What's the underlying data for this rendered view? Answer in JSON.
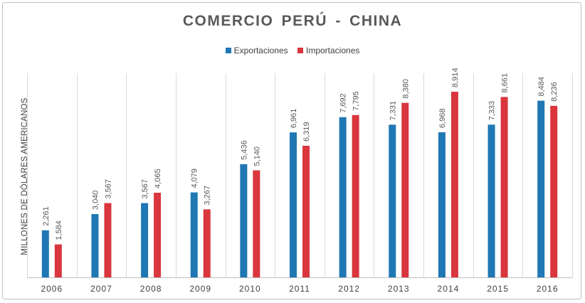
{
  "chart_data": {
    "type": "bar",
    "title": "COMERCIO  PERÚ - CHINA",
    "ylabel": "MILLONES DE DÓLARES AMERICANOS",
    "xlabel": "",
    "categories": [
      "2006",
      "2007",
      "2008",
      "2009",
      "2010",
      "2011",
      "2012",
      "2013",
      "2014",
      "2015",
      "2016"
    ],
    "ylim": [
      0,
      9800
    ],
    "grid": "vertical-category-separators",
    "legend_position": "top-center",
    "series": [
      {
        "name": "Exportaciones",
        "color": "#1f77b4",
        "values": [
          2261,
          3040,
          3567,
          4079,
          5436,
          6961,
          7692,
          7331,
          6968,
          7333,
          8484
        ],
        "labels": [
          "2,261",
          "3,040",
          "3,567",
          "4,079",
          "5,436",
          "6,961",
          "7,692",
          "7,331",
          "6,968",
          "7,333",
          "8,484"
        ]
      },
      {
        "name": "Importaciones",
        "color": "#d9363e",
        "values": [
          1584,
          3567,
          4065,
          3267,
          5140,
          6319,
          7795,
          8380,
          8914,
          8661,
          8236
        ],
        "labels": [
          "1,584",
          "3,567",
          "4,065",
          "3,267",
          "5,140",
          "6,319",
          "7,795",
          "8,380",
          "8,914",
          "8,661",
          "8,236"
        ]
      }
    ]
  }
}
